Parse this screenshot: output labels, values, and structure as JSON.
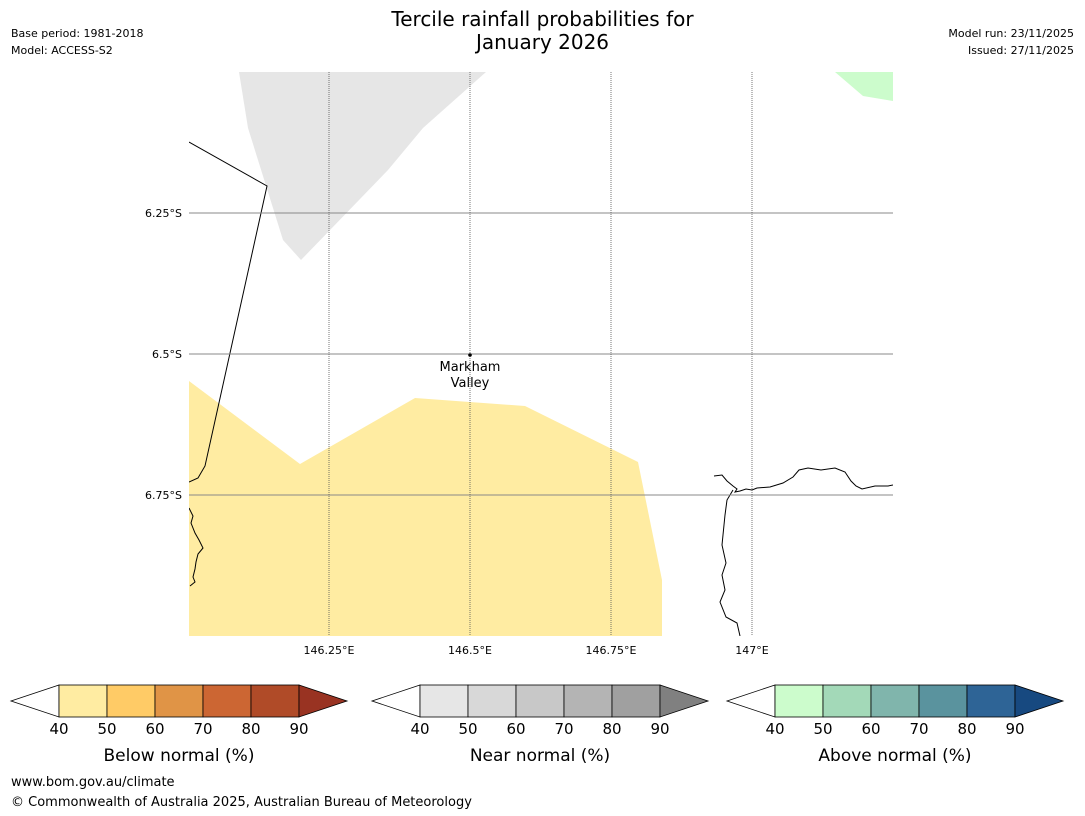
{
  "title": {
    "line1": "Tercile rainfall probabilities for",
    "line2": "January 2026"
  },
  "meta_left": {
    "base_period": "Base period: 1981-2018",
    "model": "Model: ACCESS-S2"
  },
  "meta_right": {
    "model_run": "Model run: 23/11/2025",
    "issued": "Issued: 27/11/2025"
  },
  "map": {
    "lat_labels": [
      "6.25°S",
      "6.5°S",
      "6.75°S"
    ],
    "lon_labels": [
      "146.25°E",
      "146.5°E",
      "146.75°E",
      "147°E"
    ],
    "place_name_line1": "Markham",
    "place_name_line2": "Valley",
    "colors": {
      "below_40": "#ffeca2",
      "near_40": "#e6e6e6",
      "above_40": "#ccfccc",
      "coast": "#000000",
      "grid": "#888888"
    }
  },
  "colorbars": [
    {
      "label": "Below normal (%)",
      "ticks": [
        "40",
        "50",
        "60",
        "70",
        "80",
        "90"
      ],
      "colors": [
        "#ffeca2",
        "#ffcb66",
        "#e09446",
        "#cc6633",
        "#b04b28",
        "#993322"
      ]
    },
    {
      "label": "Near normal (%)",
      "ticks": [
        "40",
        "50",
        "60",
        "70",
        "80",
        "90"
      ],
      "colors": [
        "#e6e6e6",
        "#d8d8d8",
        "#c8c8c8",
        "#b4b4b4",
        "#a0a0a0",
        "#808080"
      ]
    },
    {
      "label": "Above normal (%)",
      "ticks": [
        "40",
        "50",
        "60",
        "70",
        "80",
        "90"
      ],
      "colors": [
        "#ccfccc",
        "#a3d9b8",
        "#80b5ac",
        "#5a939e",
        "#2e6496",
        "#174980"
      ]
    }
  ],
  "footer": {
    "url": "www.bom.gov.au/climate",
    "copyright": "© Commonwealth of Australia 2025, Australian Bureau of Meteorology"
  }
}
